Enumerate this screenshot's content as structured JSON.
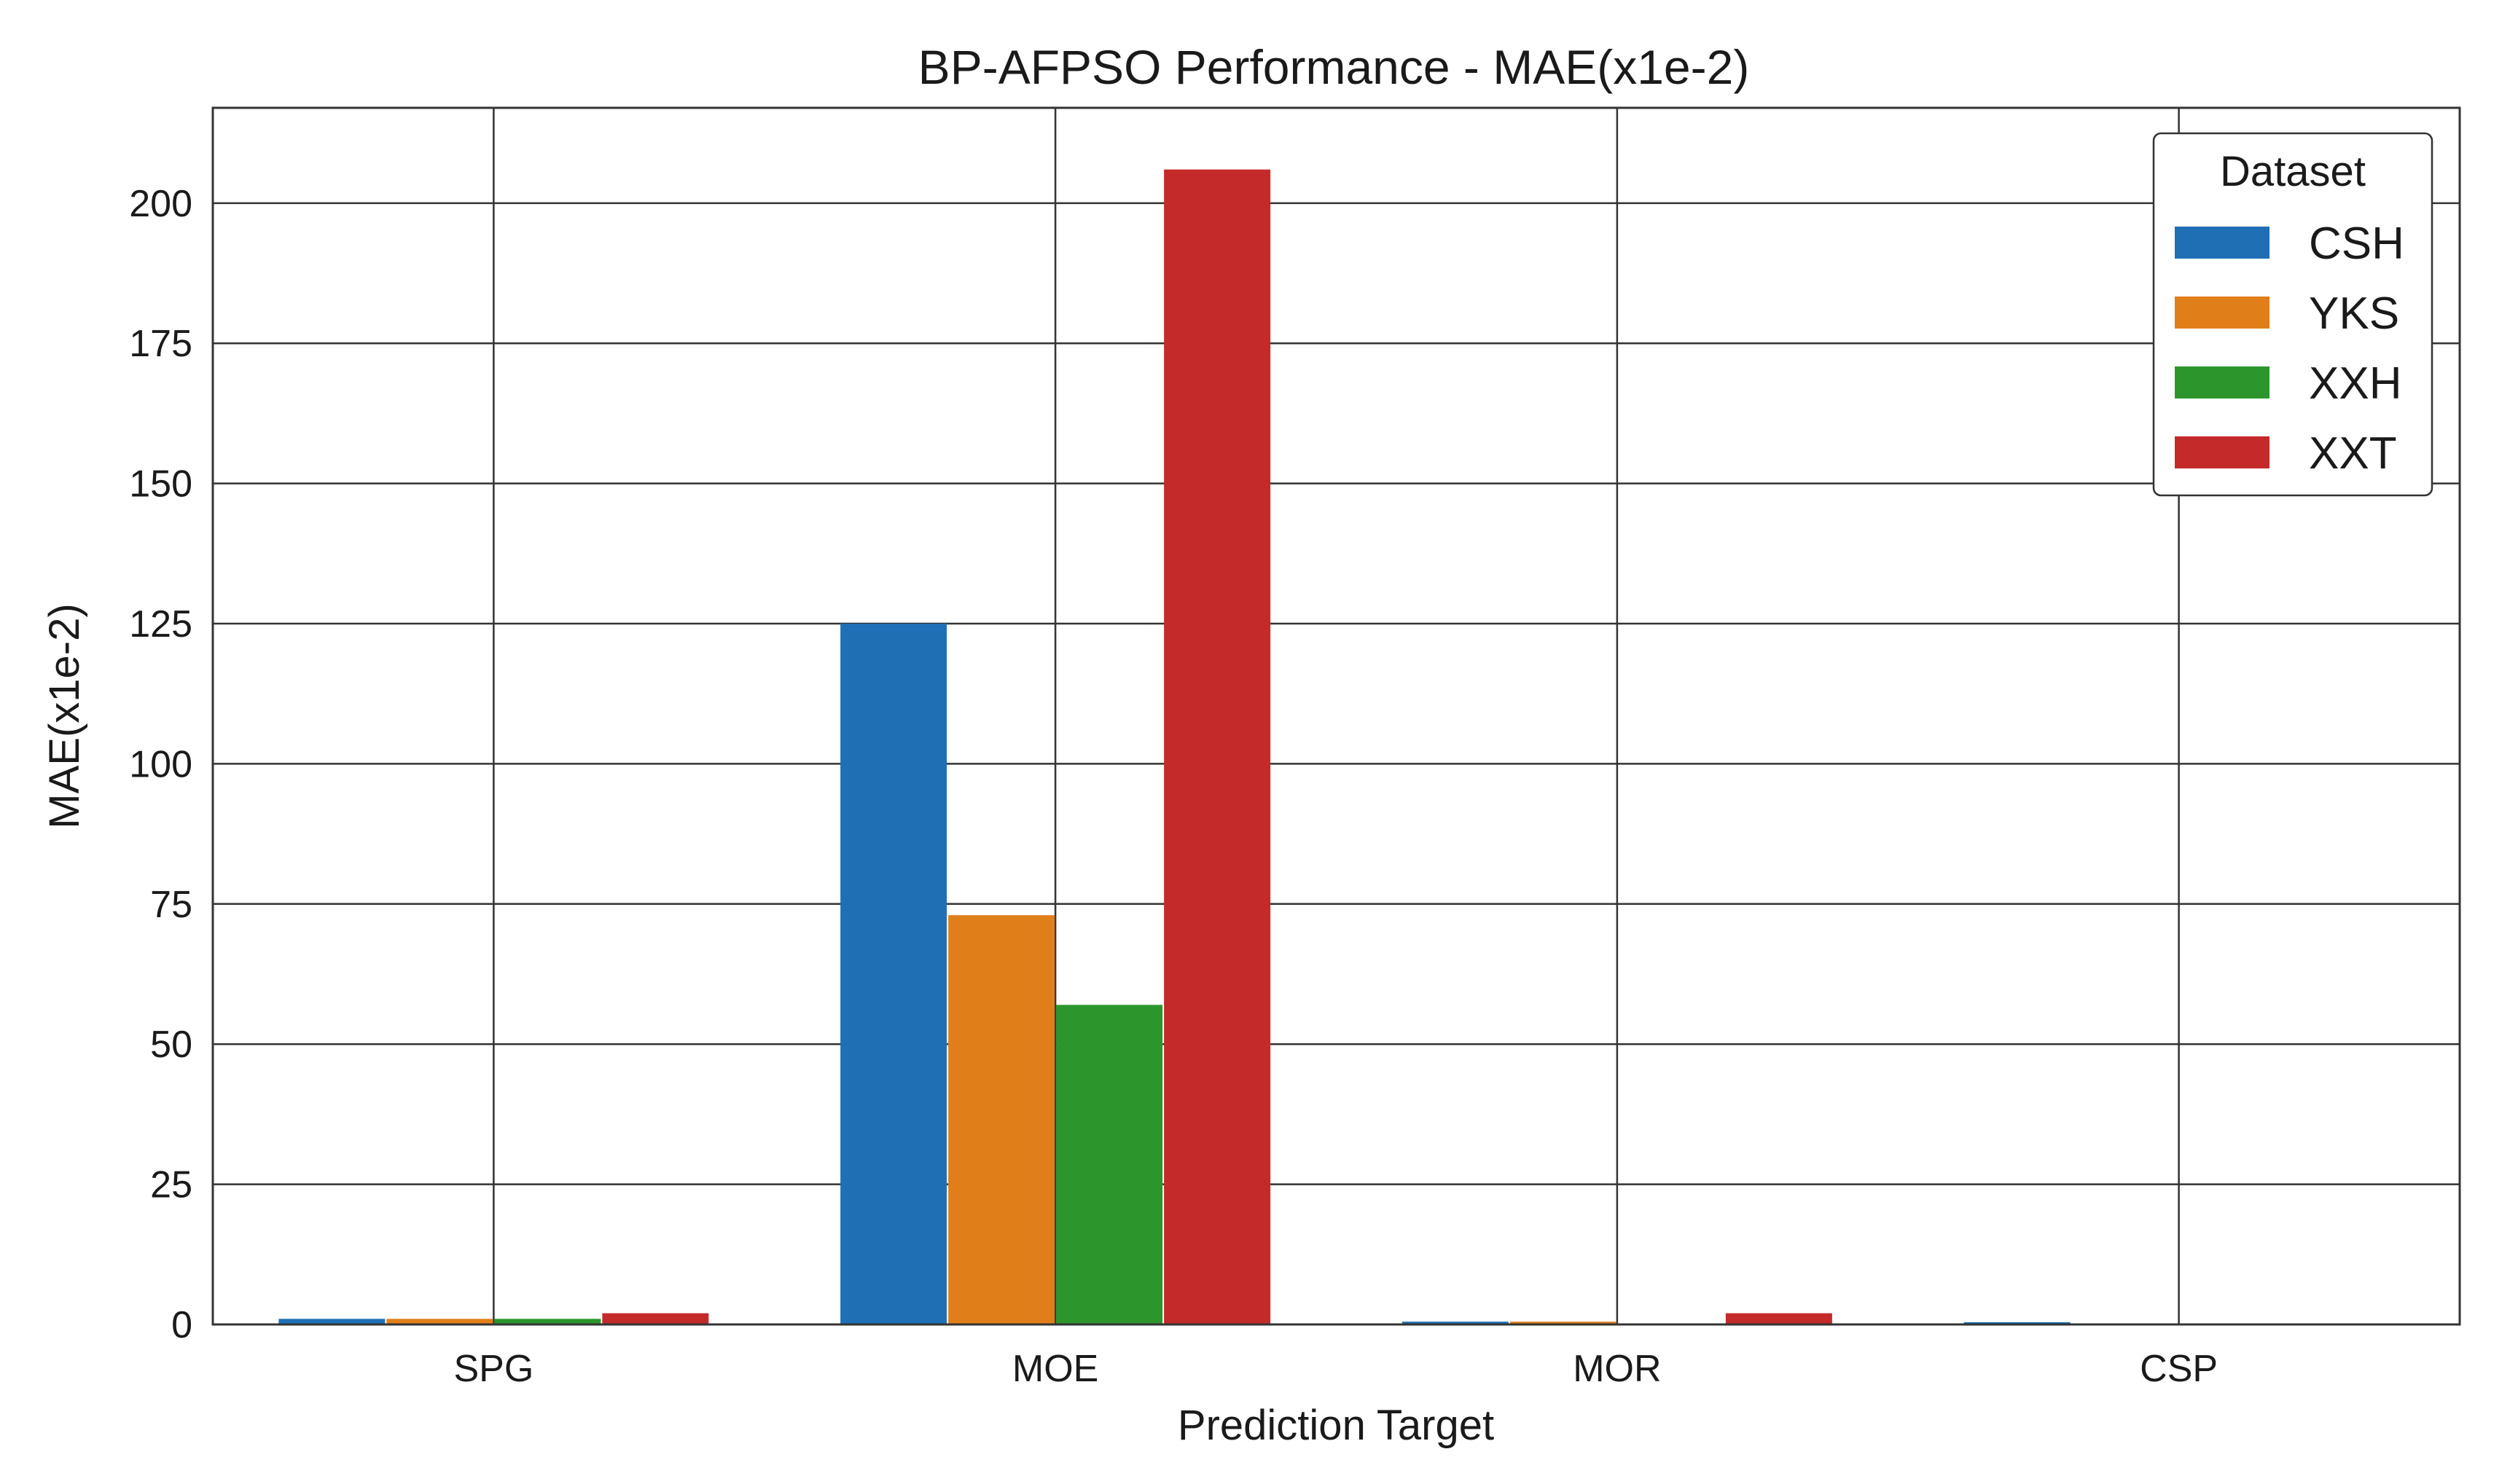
{
  "chart_data": {
    "type": "bar",
    "title": "BP-AFPSO Performance - MAE(x1e-2)",
    "xlabel": "Prediction Target",
    "ylabel": "MAE(x1e-2)",
    "categories": [
      "SPG",
      "MOE",
      "MOR",
      "CSP"
    ],
    "series": [
      {
        "name": "CSH",
        "color": "#1f6fb4",
        "values": [
          1.0,
          125.0,
          0.5,
          0.4
        ]
      },
      {
        "name": "YKS",
        "color": "#e07f1a",
        "values": [
          1.0,
          73.0,
          0.5,
          0
        ]
      },
      {
        "name": "XXH",
        "color": "#2c962c",
        "values": [
          1.0,
          57.0,
          0,
          0
        ]
      },
      {
        "name": "XXT",
        "color": "#c42a2a",
        "values": [
          2.0,
          206.0,
          2.0,
          0
        ]
      }
    ],
    "ylim": [
      0,
      217
    ],
    "yticks": [
      0,
      25,
      50,
      75,
      100,
      125,
      150,
      175,
      200
    ],
    "grid": true,
    "legend": {
      "title": "Dataset",
      "position": "top-right"
    }
  }
}
